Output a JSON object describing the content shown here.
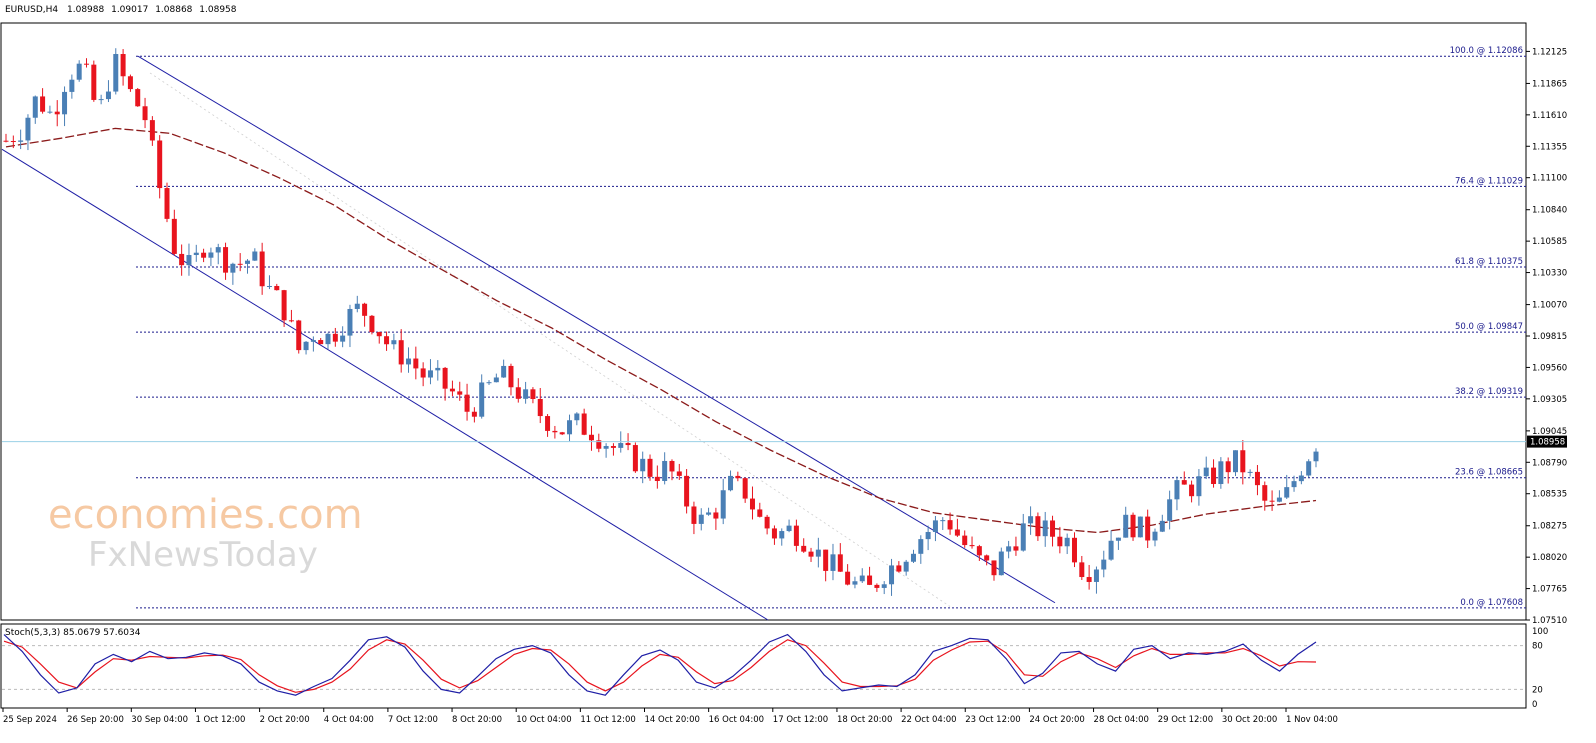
{
  "header": {
    "symbol": "EURUSD,H4",
    "open": "1.08988",
    "high": "1.09017",
    "low": "1.08868",
    "close": "1.08958"
  },
  "watermark": {
    "line1": "economies.com",
    "line2": "FxNewsToday"
  },
  "colors": {
    "bull": "#4a7fb5",
    "bear": "#e8141e",
    "ma": "#8b1a1a",
    "channel": "#1f1fa6",
    "fib": "#1a1a8c",
    "stoch_main": "#1f1fa6",
    "stoch_signal": "#e8141e",
    "price_line": "#9ad0e6"
  },
  "chart_data": [
    {
      "type": "candlestick",
      "ylim": [
        1.0751,
        1.1225
      ],
      "price_axis_ticks": [
        "1.12125",
        "1.11865",
        "1.11610",
        "1.11355",
        "1.11100",
        "1.10840",
        "1.10585",
        "1.10330",
        "1.10070",
        "1.09815",
        "1.09560",
        "1.09305",
        "1.09045",
        "1.08790",
        "1.08535",
        "1.08275",
        "1.08020",
        "1.07765",
        "1.07510"
      ],
      "current_price": "1.08958",
      "time_axis_labels": [
        "25 Sep 2024",
        "26 Sep 20:00",
        "30 Sep 04:00",
        "1 Oct 12:00",
        "2 Oct 20:00",
        "4 Oct 04:00",
        "7 Oct 12:00",
        "8 Oct 20:00",
        "10 Oct 04:00",
        "11 Oct 12:00",
        "14 Oct 20:00",
        "16 Oct 04:00",
        "17 Oct 12:00",
        "18 Oct 20:00",
        "22 Oct 04:00",
        "23 Oct 12:00",
        "24 Oct 20:00",
        "28 Oct 04:00",
        "29 Oct 12:00",
        "30 Oct 20:00",
        "1 Nov 04:00"
      ],
      "close_path": [
        1.114,
        1.115,
        1.1175,
        1.116,
        1.1195,
        1.12,
        1.116,
        1.1205,
        1.118,
        1.116,
        1.11,
        1.105,
        1.1035,
        1.106,
        1.1045,
        1.104,
        1.1045,
        1.102,
        1.1005,
        1.097,
        1.0985,
        1.098,
        1.0995,
        1.1005,
        1.099,
        1.097,
        1.0965,
        1.095,
        1.0945,
        1.0935,
        1.092,
        1.0935,
        1.095,
        1.094,
        1.0925,
        1.0915,
        1.0905,
        1.091,
        1.0905,
        1.0895,
        1.0885,
        1.088,
        1.087,
        1.0875,
        1.085,
        1.083,
        1.084,
        1.086,
        1.0855,
        1.083,
        1.082,
        1.0825,
        1.0815,
        1.08,
        1.079,
        1.078,
        1.0775,
        1.079,
        1.08,
        1.0815,
        1.0825,
        1.0835,
        1.0815,
        1.08,
        1.079,
        1.081,
        1.0825,
        1.0825,
        1.082,
        1.0815,
        1.079,
        1.08,
        1.0825,
        1.083,
        1.082,
        1.084,
        1.0855,
        1.086,
        1.0865,
        1.0875,
        1.088,
        1.086,
        1.084,
        1.085,
        1.0875,
        1.0895
      ],
      "moving_average": [
        1.1135,
        1.1142,
        1.115,
        1.1146,
        1.113,
        1.111,
        1.1088,
        1.106,
        1.1035,
        1.101,
        1.0988,
        1.0962,
        1.0938,
        1.0912,
        1.0889,
        1.0868,
        1.085,
        1.0838,
        1.0832,
        1.0826,
        1.0822,
        1.0828,
        1.0837,
        1.0843,
        1.0848
      ],
      "fibonacci_levels": [
        {
          "label": "100.0 @ 1.12086",
          "price": 1.12086
        },
        {
          "label": "76.4 @ 1.11029",
          "price": 1.11029
        },
        {
          "label": "61.8 @ 1.10375",
          "price": 1.10375
        },
        {
          "label": "50.0 @ 1.09847",
          "price": 1.09847
        },
        {
          "label": "38.2 @ 1.09319",
          "price": 1.09319
        },
        {
          "label": "23.6 @ 1.08665",
          "price": 1.08665
        },
        {
          "label": "0.0 @ 1.07608",
          "price": 1.07608
        }
      ]
    },
    {
      "type": "line",
      "name": "Stoch(5,3,3)",
      "header": "Stoch(5,3,3) 85.0679 57.6034",
      "ylim": [
        0,
        100
      ],
      "axis_ticks": [
        "100",
        "80",
        "20",
        "0"
      ],
      "levels": [
        80,
        20
      ],
      "main": [
        95,
        72,
        40,
        15,
        22,
        55,
        68,
        58,
        72,
        62,
        64,
        70,
        66,
        55,
        30,
        18,
        12,
        24,
        35,
        60,
        88,
        92,
        78,
        45,
        20,
        15,
        38,
        62,
        75,
        80,
        70,
        40,
        18,
        12,
        40,
        66,
        74,
        60,
        30,
        22,
        38,
        60,
        85,
        95,
        72,
        40,
        18,
        22,
        26,
        24,
        40,
        72,
        80,
        90,
        88,
        62,
        28,
        42,
        70,
        72,
        55,
        45,
        75,
        80,
        62,
        70,
        68,
        72,
        82,
        60,
        45,
        68,
        85
      ],
      "signal": [
        86,
        78,
        55,
        30,
        22,
        44,
        62,
        60,
        65,
        64,
        63,
        66,
        67,
        61,
        40,
        25,
        16,
        20,
        30,
        48,
        74,
        88,
        82,
        60,
        34,
        22,
        32,
        50,
        68,
        76,
        74,
        55,
        30,
        18,
        30,
        52,
        68,
        64,
        44,
        28,
        32,
        50,
        72,
        88,
        80,
        56,
        30,
        24,
        24,
        25,
        34,
        60,
        74,
        85,
        86,
        70,
        40,
        38,
        58,
        70,
        62,
        50,
        66,
        76,
        68,
        68,
        70,
        70,
        76,
        66,
        52,
        58,
        57.6
      ]
    }
  ]
}
